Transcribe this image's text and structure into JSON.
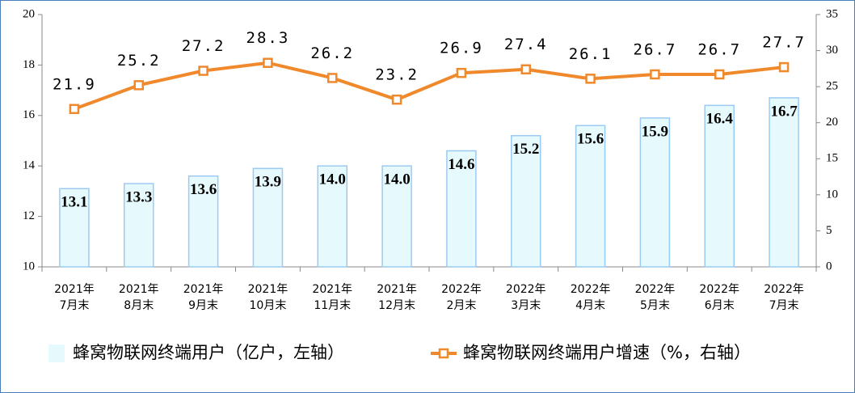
{
  "chart_data": {
    "type": "bar-line",
    "categories": [
      [
        "2021年",
        "7月末"
      ],
      [
        "2021年",
        "8月末"
      ],
      [
        "2021年",
        "9月末"
      ],
      [
        "2021年",
        "10月末"
      ],
      [
        "2021年",
        "11月末"
      ],
      [
        "2021年",
        "12月末"
      ],
      [
        "2022年",
        "2月末"
      ],
      [
        "2022年",
        "3月末"
      ],
      [
        "2022年",
        "4月末"
      ],
      [
        "2022年",
        "5月末"
      ],
      [
        "2022年",
        "6月末"
      ],
      [
        "2022年",
        "7月末"
      ]
    ],
    "series": [
      {
        "name": "蜂窝物联网终端用户（亿户，左轴）",
        "type": "bar",
        "axis": "y",
        "color": "#e6fafe",
        "stroke": "#9ccaf2",
        "values": [
          13.1,
          13.3,
          13.6,
          13.9,
          14.0,
          14.0,
          14.6,
          15.2,
          15.6,
          15.9,
          16.4,
          16.7
        ],
        "value_labels": [
          "13.1",
          "13.3",
          "13.6",
          "13.9",
          "14.0",
          "14.0",
          "14.6",
          "15.2",
          "15.6",
          "15.9",
          "16.4",
          "16.7"
        ]
      },
      {
        "name": "蜂窝物联网终端用户增速（%，右轴）",
        "type": "line",
        "axis": "y2",
        "color": "#f0892c",
        "values": [
          21.9,
          25.2,
          27.2,
          28.3,
          26.2,
          23.2,
          26.9,
          27.4,
          26.1,
          26.7,
          26.7,
          27.7
        ]
      }
    ],
    "ylim": [
      10,
      20
    ],
    "yticks": [
      10,
      12,
      14,
      16,
      18,
      20
    ],
    "y2lim": [
      0,
      35
    ],
    "y2ticks": [
      0,
      5,
      10,
      15,
      20,
      25,
      30,
      35
    ]
  }
}
